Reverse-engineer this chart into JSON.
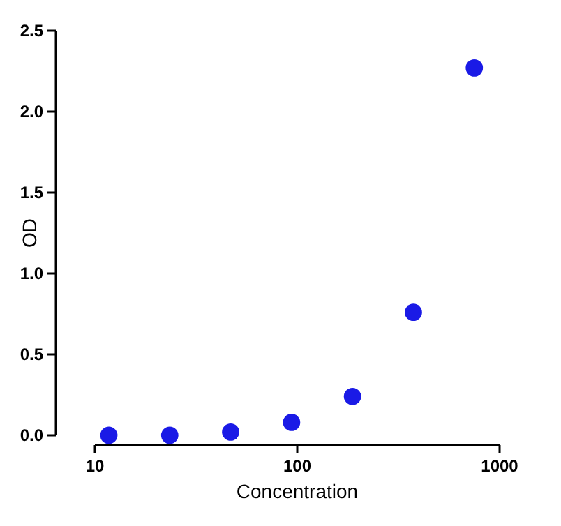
{
  "chart_data": {
    "type": "scatter",
    "xlabel": "Concentration",
    "ylabel": "OD",
    "x": [
      11.72,
      23.44,
      46.88,
      93.75,
      187.5,
      375,
      750
    ],
    "series": [
      {
        "color": "#1a1ae6",
        "values": [
          0,
          0,
          0.02,
          0.08,
          0.24,
          0.76,
          2.27
        ]
      }
    ],
    "log": "x",
    "xlim": [
      10,
      1000
    ],
    "xticks": [
      10,
      100,
      1000
    ],
    "ylim": [
      0,
      2.5
    ],
    "yticks": [
      {
        "value": 0,
        "label": "0.0"
      },
      {
        "value": 0.5,
        "label": "0.5"
      },
      {
        "value": 1,
        "label": "1.0"
      },
      {
        "value": 1.5,
        "label": "1.5"
      },
      {
        "value": 2,
        "label": "2.0"
      },
      {
        "value": 2.5,
        "label": "2.5"
      }
    ],
    "grid": false,
    "marker": "circle"
  }
}
